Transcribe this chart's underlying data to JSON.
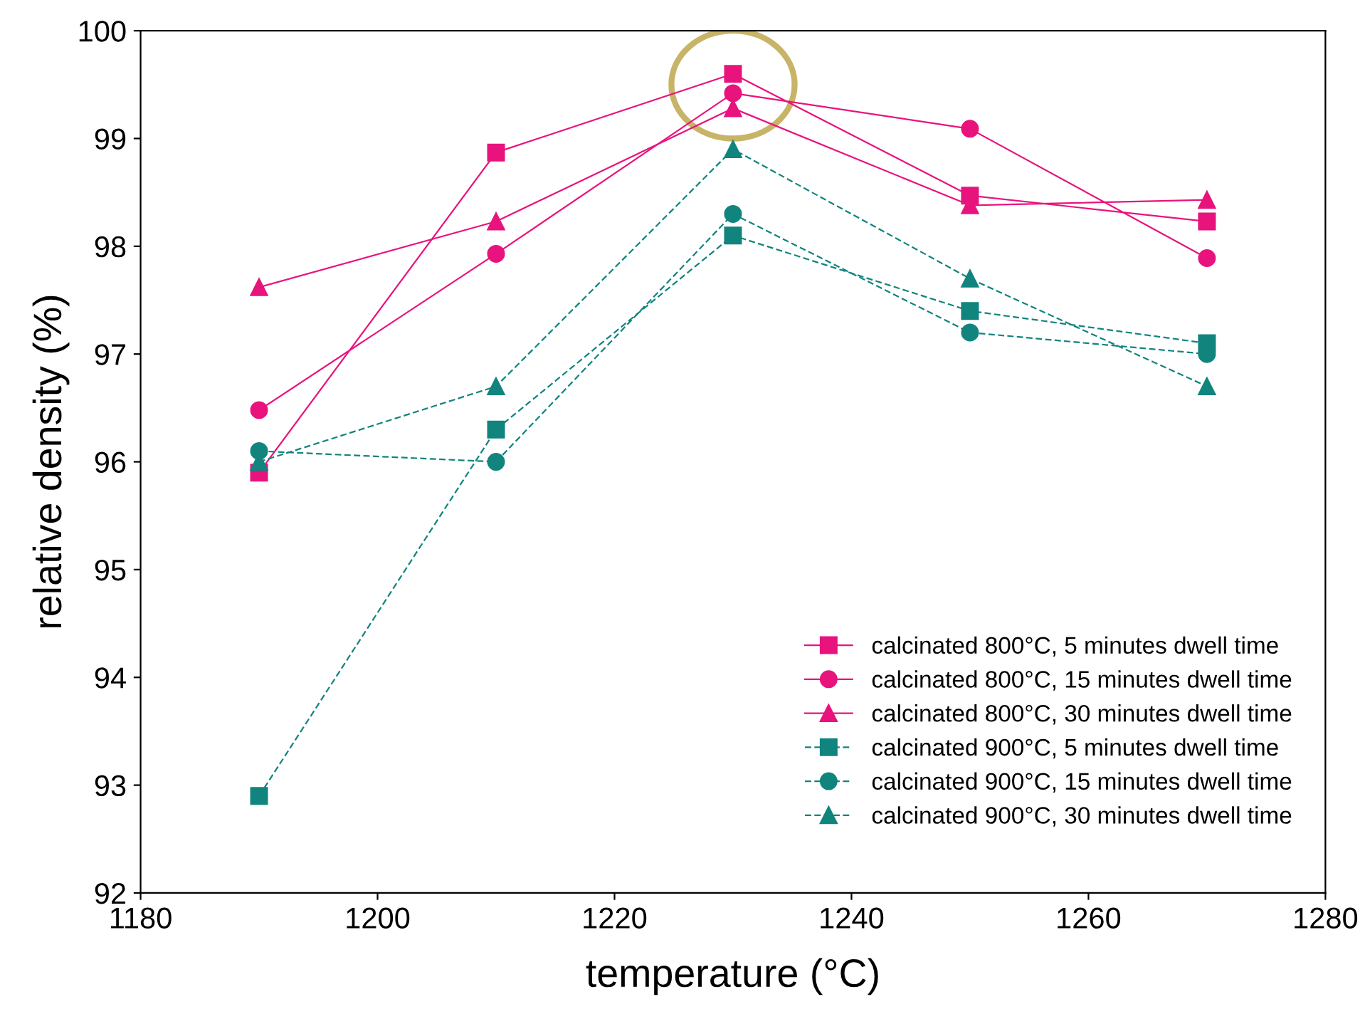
{
  "chart_data": {
    "type": "line",
    "xlabel": "temperature (°C)",
    "ylabel": "relative density (%)",
    "x": [
      1190,
      1210,
      1230,
      1250,
      1270
    ],
    "xlim": [
      1180,
      1280
    ],
    "xticks": [
      1180,
      1200,
      1220,
      1240,
      1260,
      1280
    ],
    "ylim": [
      92,
      100
    ],
    "yticks": [
      92,
      93,
      94,
      95,
      96,
      97,
      98,
      99,
      100
    ],
    "grid": false,
    "legend": "bottom right",
    "series": [
      {
        "name": "calcinated 800°C, 5 minutes dwell time",
        "color": "#e8137d",
        "marker": "square",
        "line_style": "solid",
        "values": [
          95.9,
          98.87,
          99.6,
          98.47,
          98.23
        ]
      },
      {
        "name": "calcinated 800°C, 15 minutes dwell time",
        "color": "#e8137d",
        "marker": "circle",
        "line_style": "solid",
        "values": [
          96.48,
          97.93,
          99.42,
          99.09,
          97.89
        ]
      },
      {
        "name": "calcinated 800°C, 30 minutes dwell time",
        "color": "#e8137d",
        "marker": "triangle",
        "line_style": "solid",
        "values": [
          97.62,
          98.23,
          99.28,
          98.38,
          98.43
        ]
      },
      {
        "name": "calcinated 900°C, 5 minutes dwell time",
        "color": "#11847e",
        "marker": "square",
        "line_style": "dashed",
        "values": [
          92.9,
          96.3,
          98.1,
          97.4,
          97.1
        ]
      },
      {
        "name": "calcinated 900°C, 15 minutes dwell time",
        "color": "#11847e",
        "marker": "circle",
        "line_style": "dashed",
        "values": [
          96.1,
          96.0,
          98.3,
          97.2,
          97.0
        ]
      },
      {
        "name": "calcinated 900°C, 30 minutes dwell time",
        "color": "#11847e",
        "marker": "triangle",
        "line_style": "dashed",
        "values": [
          96.0,
          96.7,
          98.9,
          97.7,
          96.7
        ]
      }
    ]
  }
}
